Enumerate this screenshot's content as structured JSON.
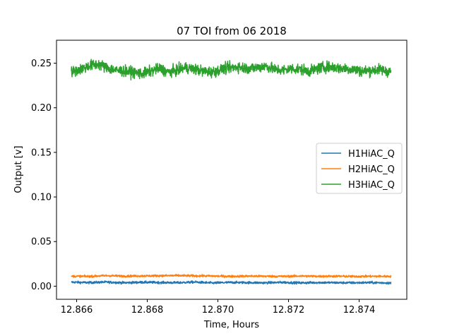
{
  "chart_data": {
    "type": "line",
    "title": "07 TOI from 06 2018",
    "xlabel": "Time, Hours",
    "ylabel": "Output [v]",
    "xlim": [
      12.86543,
      12.87535
    ],
    "ylim": [
      -0.0147,
      0.2757
    ],
    "x_ticks": [
      12.866,
      12.868,
      12.87,
      12.872,
      12.874
    ],
    "x_tick_labels": [
      "12.866",
      "12.868",
      "12.870",
      "12.872",
      "12.874"
    ],
    "y_ticks": [
      0.0,
      0.05,
      0.1,
      0.15,
      0.2,
      0.25
    ],
    "y_tick_labels": [
      "0.00",
      "0.05",
      "0.10",
      "0.15",
      "0.20",
      "0.25"
    ],
    "grid": false,
    "legend_position": "center-right",
    "series": [
      {
        "name": "H1HiAC_Q",
        "color": "#1f77b4",
        "x": [
          12.86585,
          12.86635,
          12.86685,
          12.86735,
          12.86785,
          12.86835,
          12.86885,
          12.86935,
          12.86985,
          12.87035,
          12.87085,
          12.87135,
          12.87185,
          12.87235,
          12.87285,
          12.87335,
          12.87385,
          12.87435,
          12.8749
        ],
        "values": [
          0.0045,
          0.004,
          0.0046,
          0.0038,
          0.0044,
          0.0041,
          0.0039,
          0.0046,
          0.0036,
          0.0042,
          0.004,
          0.0038,
          0.0043,
          0.0037,
          0.0041,
          0.0039,
          0.0038,
          0.004,
          0.0036
        ]
      },
      {
        "name": "H2HiAC_Q",
        "color": "#ff7f0e",
        "x": [
          12.86585,
          12.86635,
          12.86685,
          12.86735,
          12.86785,
          12.86835,
          12.86885,
          12.86935,
          12.86985,
          12.87035,
          12.87085,
          12.87135,
          12.87185,
          12.87235,
          12.87285,
          12.87335,
          12.87385,
          12.87435,
          12.8749
        ],
        "values": [
          0.0112,
          0.011,
          0.0118,
          0.0113,
          0.0115,
          0.0117,
          0.0119,
          0.0116,
          0.0114,
          0.011,
          0.0113,
          0.0112,
          0.011,
          0.0114,
          0.0111,
          0.0112,
          0.0109,
          0.0111,
          0.011
        ]
      },
      {
        "name": "H3HiAC_Q",
        "color": "#2ca02c",
        "x": [
          12.86585,
          12.8661,
          12.86635,
          12.8666,
          12.86685,
          12.8671,
          12.86735,
          12.8676,
          12.86785,
          12.8681,
          12.86835,
          12.8686,
          12.86885,
          12.8691,
          12.86935,
          12.8696,
          12.86985,
          12.8701,
          12.87035,
          12.8706,
          12.87085,
          12.8711,
          12.87135,
          12.8716,
          12.87185,
          12.8721,
          12.87235,
          12.8726,
          12.87285,
          12.8731,
          12.87335,
          12.8736,
          12.87385,
          12.8741,
          12.87435,
          12.8746,
          12.8749
        ],
        "values": [
          0.24,
          0.243,
          0.247,
          0.249,
          0.245,
          0.242,
          0.241,
          0.24,
          0.238,
          0.241,
          0.244,
          0.24,
          0.242,
          0.245,
          0.243,
          0.241,
          0.24,
          0.243,
          0.245,
          0.246,
          0.244,
          0.245,
          0.247,
          0.243,
          0.242,
          0.244,
          0.243,
          0.241,
          0.244,
          0.246,
          0.245,
          0.244,
          0.243,
          0.241,
          0.242,
          0.243,
          0.24
        ]
      }
    ]
  }
}
